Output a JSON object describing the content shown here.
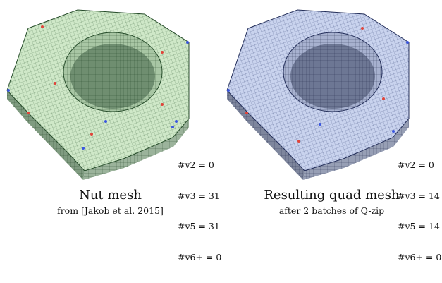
{
  "figures": [
    {
      "id": "nut",
      "title": "Nut mesh",
      "subtitle": "from [Jakob et al. 2015]",
      "colors": {
        "top": "#cfe8c8",
        "side": "#8aa58a",
        "line": "#2f5a33"
      },
      "stats": [
        "#v2 = 0",
        "#v3 = 31",
        "#v5 = 31",
        "#v6+ = 0"
      ]
    },
    {
      "id": "quad",
      "title": "Resulting quad mesh",
      "subtitle": "after 2 batches of Q-zip",
      "colors": {
        "top": "#c9d3ee",
        "side": "#8790a8",
        "line": "#2c3a6e"
      },
      "stats": [
        "#v2 = 0",
        "#v3 = 14",
        "#v5 = 14",
        "#v6+ = 0"
      ]
    }
  ]
}
